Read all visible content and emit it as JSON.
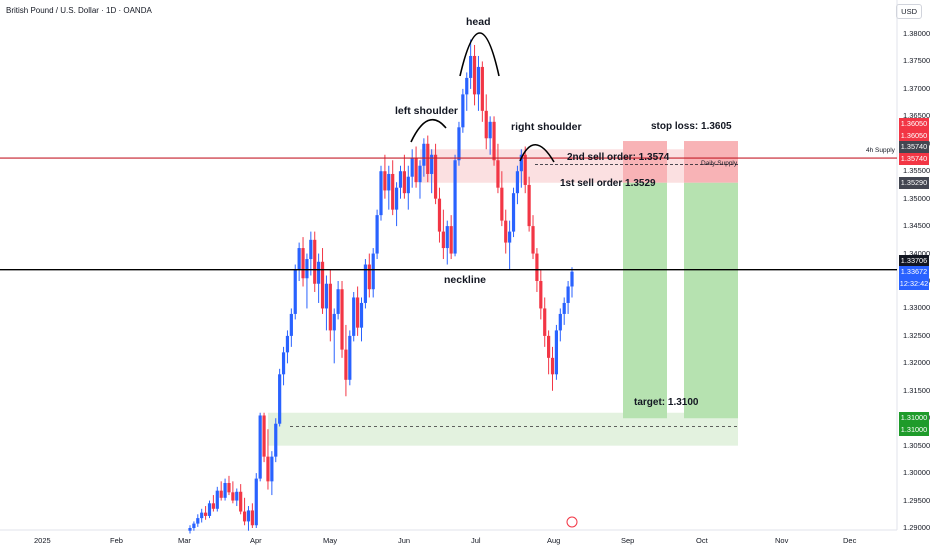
{
  "header": {
    "title": "British Pound / U.S. Dollar · 1D · OANDA"
  },
  "axis": {
    "currency_label": "USD"
  },
  "colors": {
    "up": "#2962ff",
    "down": "#f23645",
    "target_zone": "#b6e2b0",
    "sell_zone": "#f8b3b6",
    "supply_line": "#c51f2b",
    "price_tag_blue": "#2962ff",
    "price_tag_red": "#f23645",
    "price_tag_green": "#1e9b2a"
  },
  "chart_data": {
    "type": "candlestick",
    "title": "British Pound / U.S. Dollar · 1D · OANDA",
    "x_ticks": [
      "2025",
      "Feb",
      "Mar",
      "Apr",
      "May",
      "Jun",
      "Jul",
      "Aug",
      "Sep",
      "Oct",
      "Nov",
      "Dec"
    ],
    "y_ticks": [
      "1.38000",
      "1.37500",
      "1.37000",
      "1.36500",
      "1.36000",
      "1.35500",
      "1.35000",
      "1.34500",
      "1.34000",
      "1.33500",
      "1.33000",
      "1.32500",
      "1.32000",
      "1.31500",
      "1.31000",
      "1.30500",
      "1.30000",
      "1.29500",
      "1.29000"
    ],
    "ylim": [
      1.2895,
      1.3835
    ],
    "price_tags": [
      {
        "label": "1.36050",
        "kind": "red"
      },
      {
        "label": "1.36050",
        "kind": "red-light"
      },
      {
        "label": "1.35740",
        "kind": "dark"
      },
      {
        "label": "1.35740",
        "kind": "red"
      },
      {
        "label": "1.35290",
        "kind": "dark"
      },
      {
        "label": "1.33706",
        "kind": "black"
      },
      {
        "label": "1.33672",
        "kind": "blue"
      },
      {
        "label": "12:32:42",
        "kind": "blue"
      },
      {
        "label": "1.31000",
        "kind": "green"
      },
      {
        "label": "1.31000",
        "kind": "green"
      }
    ],
    "levels": {
      "stop_loss": 1.3605,
      "second_sell": 1.3574,
      "first_sell": 1.3529,
      "neckline": 1.33706,
      "target": 1.31,
      "supply_4h": 1.3574,
      "daily_supply": 1.3562
    },
    "annotations": {
      "head": "head",
      "left_shoulder": "left shoulder",
      "right_shoulder": "right shoulder",
      "neckline": "neckline",
      "second_sell": "2nd sell order: 1.3574",
      "first_sell": "1st sell order 1.3529",
      "stop_loss": "stop loss: 1.3605",
      "target": "target: 1.3100",
      "supply_4h": "4h Supply",
      "daily_supply": "Daily Supply"
    },
    "candles": [
      [
        1.2895,
        1.2905,
        1.289,
        1.29
      ],
      [
        1.29,
        1.2912,
        1.2895,
        1.2908
      ],
      [
        1.2908,
        1.2925,
        1.2902,
        1.2918
      ],
      [
        1.2918,
        1.2935,
        1.291,
        1.2928
      ],
      [
        1.2928,
        1.294,
        1.2915,
        1.2922
      ],
      [
        1.2922,
        1.295,
        1.2918,
        1.2945
      ],
      [
        1.2945,
        1.296,
        1.293,
        1.2935
      ],
      [
        1.2935,
        1.2975,
        1.293,
        1.2968
      ],
      [
        1.2968,
        1.2985,
        1.295,
        1.2955
      ],
      [
        1.2955,
        1.299,
        1.295,
        1.2982
      ],
      [
        1.2982,
        1.2995,
        1.296,
        1.2965
      ],
      [
        1.2965,
        1.2985,
        1.2945,
        1.295
      ],
      [
        1.295,
        1.2972,
        1.294,
        1.2966
      ],
      [
        1.2966,
        1.298,
        1.2925,
        1.293
      ],
      [
        1.293,
        1.2955,
        1.2905,
        1.2912
      ],
      [
        1.2912,
        1.294,
        1.2895,
        1.2932
      ],
      [
        1.2932,
        1.2945,
        1.29,
        1.2905
      ],
      [
        1.2905,
        1.3,
        1.29,
        1.299
      ],
      [
        1.299,
        1.311,
        1.2985,
        1.3105
      ],
      [
        1.3105,
        1.311,
        1.302,
        1.303
      ],
      [
        1.303,
        1.308,
        1.297,
        1.2985
      ],
      [
        1.2985,
        1.304,
        1.296,
        1.303
      ],
      [
        1.303,
        1.31,
        1.302,
        1.309
      ],
      [
        1.309,
        1.319,
        1.3085,
        1.318
      ],
      [
        1.318,
        1.323,
        1.316,
        1.322
      ],
      [
        1.322,
        1.326,
        1.32,
        1.325
      ],
      [
        1.325,
        1.33,
        1.323,
        1.329
      ],
      [
        1.329,
        1.338,
        1.328,
        1.337
      ],
      [
        1.337,
        1.342,
        1.335,
        1.341
      ],
      [
        1.341,
        1.343,
        1.334,
        1.3355
      ],
      [
        1.3355,
        1.34,
        1.33,
        1.339
      ],
      [
        1.339,
        1.344,
        1.336,
        1.3425
      ],
      [
        1.3425,
        1.344,
        1.333,
        1.3345
      ],
      [
        1.3345,
        1.34,
        1.331,
        1.3385
      ],
      [
        1.3385,
        1.341,
        1.329,
        1.33
      ],
      [
        1.33,
        1.336,
        1.326,
        1.3345
      ],
      [
        1.3345,
        1.337,
        1.324,
        1.326
      ],
      [
        1.326,
        1.33,
        1.32,
        1.329
      ],
      [
        1.329,
        1.335,
        1.328,
        1.3335
      ],
      [
        1.3335,
        1.335,
        1.321,
        1.3225
      ],
      [
        1.3225,
        1.327,
        1.314,
        1.317
      ],
      [
        1.317,
        1.326,
        1.316,
        1.325
      ],
      [
        1.325,
        1.333,
        1.324,
        1.332
      ],
      [
        1.332,
        1.334,
        1.325,
        1.3265
      ],
      [
        1.3265,
        1.332,
        1.324,
        1.331
      ],
      [
        1.331,
        1.339,
        1.33,
        1.338
      ],
      [
        1.338,
        1.34,
        1.332,
        1.3335
      ],
      [
        1.3335,
        1.341,
        1.332,
        1.34
      ],
      [
        1.34,
        1.348,
        1.339,
        1.347
      ],
      [
        1.347,
        1.356,
        1.346,
        1.355
      ],
      [
        1.355,
        1.358,
        1.35,
        1.3515
      ],
      [
        1.3515,
        1.356,
        1.348,
        1.3545
      ],
      [
        1.3545,
        1.357,
        1.347,
        1.348
      ],
      [
        1.348,
        1.353,
        1.345,
        1.352
      ],
      [
        1.352,
        1.356,
        1.35,
        1.355
      ],
      [
        1.355,
        1.358,
        1.35,
        1.351
      ],
      [
        1.351,
        1.356,
        1.348,
        1.354
      ],
      [
        1.354,
        1.359,
        1.352,
        1.3575
      ],
      [
        1.3575,
        1.3595,
        1.352,
        1.353
      ],
      [
        1.353,
        1.357,
        1.35,
        1.356
      ],
      [
        1.356,
        1.361,
        1.354,
        1.36
      ],
      [
        1.36,
        1.3615,
        1.353,
        1.3545
      ],
      [
        1.3545,
        1.359,
        1.351,
        1.358
      ],
      [
        1.358,
        1.36,
        1.349,
        1.35
      ],
      [
        1.35,
        1.352,
        1.342,
        1.344
      ],
      [
        1.344,
        1.348,
        1.339,
        1.341
      ],
      [
        1.341,
        1.346,
        1.338,
        1.345
      ],
      [
        1.345,
        1.347,
        1.339,
        1.34
      ],
      [
        1.34,
        1.358,
        1.3395,
        1.357
      ],
      [
        1.357,
        1.364,
        1.356,
        1.363
      ],
      [
        1.363,
        1.37,
        1.362,
        1.369
      ],
      [
        1.369,
        1.373,
        1.366,
        1.372
      ],
      [
        1.372,
        1.379,
        1.37,
        1.376
      ],
      [
        1.376,
        1.378,
        1.367,
        1.369
      ],
      [
        1.369,
        1.376,
        1.366,
        1.374
      ],
      [
        1.374,
        1.375,
        1.364,
        1.366
      ],
      [
        1.366,
        1.369,
        1.359,
        1.361
      ],
      [
        1.361,
        1.365,
        1.358,
        1.364
      ],
      [
        1.364,
        1.365,
        1.356,
        1.357
      ],
      [
        1.357,
        1.36,
        1.351,
        1.352
      ],
      [
        1.352,
        1.355,
        1.345,
        1.346
      ],
      [
        1.346,
        1.348,
        1.34,
        1.342
      ],
      [
        1.342,
        1.346,
        1.337,
        1.344
      ],
      [
        1.344,
        1.352,
        1.343,
        1.351
      ],
      [
        1.351,
        1.356,
        1.349,
        1.355
      ],
      [
        1.355,
        1.359,
        1.352,
        1.358
      ],
      [
        1.358,
        1.3595,
        1.351,
        1.3525
      ],
      [
        1.3525,
        1.354,
        1.344,
        1.345
      ],
      [
        1.345,
        1.347,
        1.339,
        1.34
      ],
      [
        1.34,
        1.341,
        1.333,
        1.335
      ],
      [
        1.335,
        1.337,
        1.328,
        1.33
      ],
      [
        1.33,
        1.332,
        1.323,
        1.325
      ],
      [
        1.325,
        1.326,
        1.318,
        1.321
      ],
      [
        1.321,
        1.323,
        1.315,
        1.318
      ],
      [
        1.318,
        1.327,
        1.317,
        1.326
      ],
      [
        1.326,
        1.33,
        1.324,
        1.329
      ],
      [
        1.329,
        1.332,
        1.327,
        1.331
      ],
      [
        1.331,
        1.335,
        1.329,
        1.334
      ],
      [
        1.334,
        1.3375,
        1.332,
        1.3367
      ]
    ]
  }
}
